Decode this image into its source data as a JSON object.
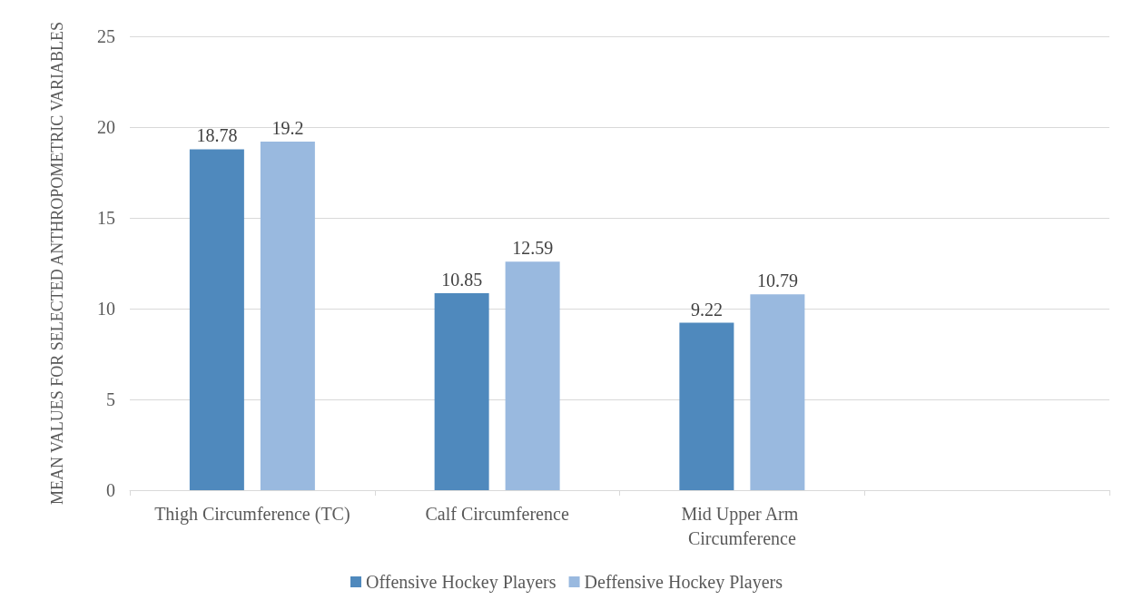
{
  "chart_data": {
    "type": "bar",
    "ylabel": "MEAN VALUES FOR SELECTED ANTHROPOMETRIC VARIABLES",
    "categories": [
      "Thigh Circumference (TC)",
      "Calf Circumference",
      "Mid Upper Arm Circumference",
      null
    ],
    "series": [
      {
        "name": "Offensive Hockey Players",
        "color": "#4f89bd",
        "values": [
          18.78,
          10.85,
          9.22,
          null
        ]
      },
      {
        "name": "Deffensive Hockey Players",
        "color": "#99b9df",
        "values": [
          19.2,
          12.59,
          10.79,
          null
        ]
      }
    ],
    "ylim": [
      0,
      25
    ],
    "yticks": [
      0,
      5,
      10,
      15,
      20,
      25
    ],
    "grid": "y",
    "legend": "bottom",
    "data_labels": true
  }
}
